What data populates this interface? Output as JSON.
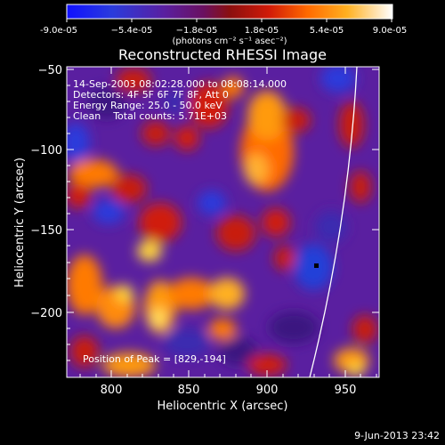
{
  "figure": {
    "title": "Reconstructed RHESSI Image",
    "colorbar": {
      "tick_labels": [
        "-9.0e-05",
        "−5.4e-05",
        "−1.8e-05",
        "1.8e-05",
        "5.4e-05",
        "9.0e-05"
      ],
      "units_label": "(photons cm⁻² s⁻¹ asec⁻²)"
    },
    "xaxis": {
      "label": "Heliocentric X (arcsec)",
      "ticks": [
        "800",
        "850",
        "900",
        "950"
      ]
    },
    "yaxis": {
      "label": "Heliocentric Y (arcsec)",
      "ticks": [
        "−50",
        "−100",
        "−150",
        "−200"
      ]
    },
    "annotations": {
      "line1": "14-Sep-2003 08:02:28.000 to 08:08:14.000",
      "line2": "Detectors: 4F 5F 6F 7F 8F, Att 0",
      "line3": "Energy Range: 25.0 - 50.0 keV",
      "line4": "Clean    Total counts: 5.71E+03",
      "peak": "Position of Peak = [829,-194]"
    },
    "footer_date": "9-Jun-2013 23:42"
  },
  "colors": {
    "background": "#000000",
    "text": "#ffffff",
    "limb_line": "#ffffff",
    "purple": "#5a1fa0",
    "dark_purple": "#3a1580",
    "blue": "#2040d0",
    "red": "#c81a0a",
    "dark_red": "#8a0f0f",
    "orange": "#ff7a00",
    "yellow": "#ffd63a"
  }
}
